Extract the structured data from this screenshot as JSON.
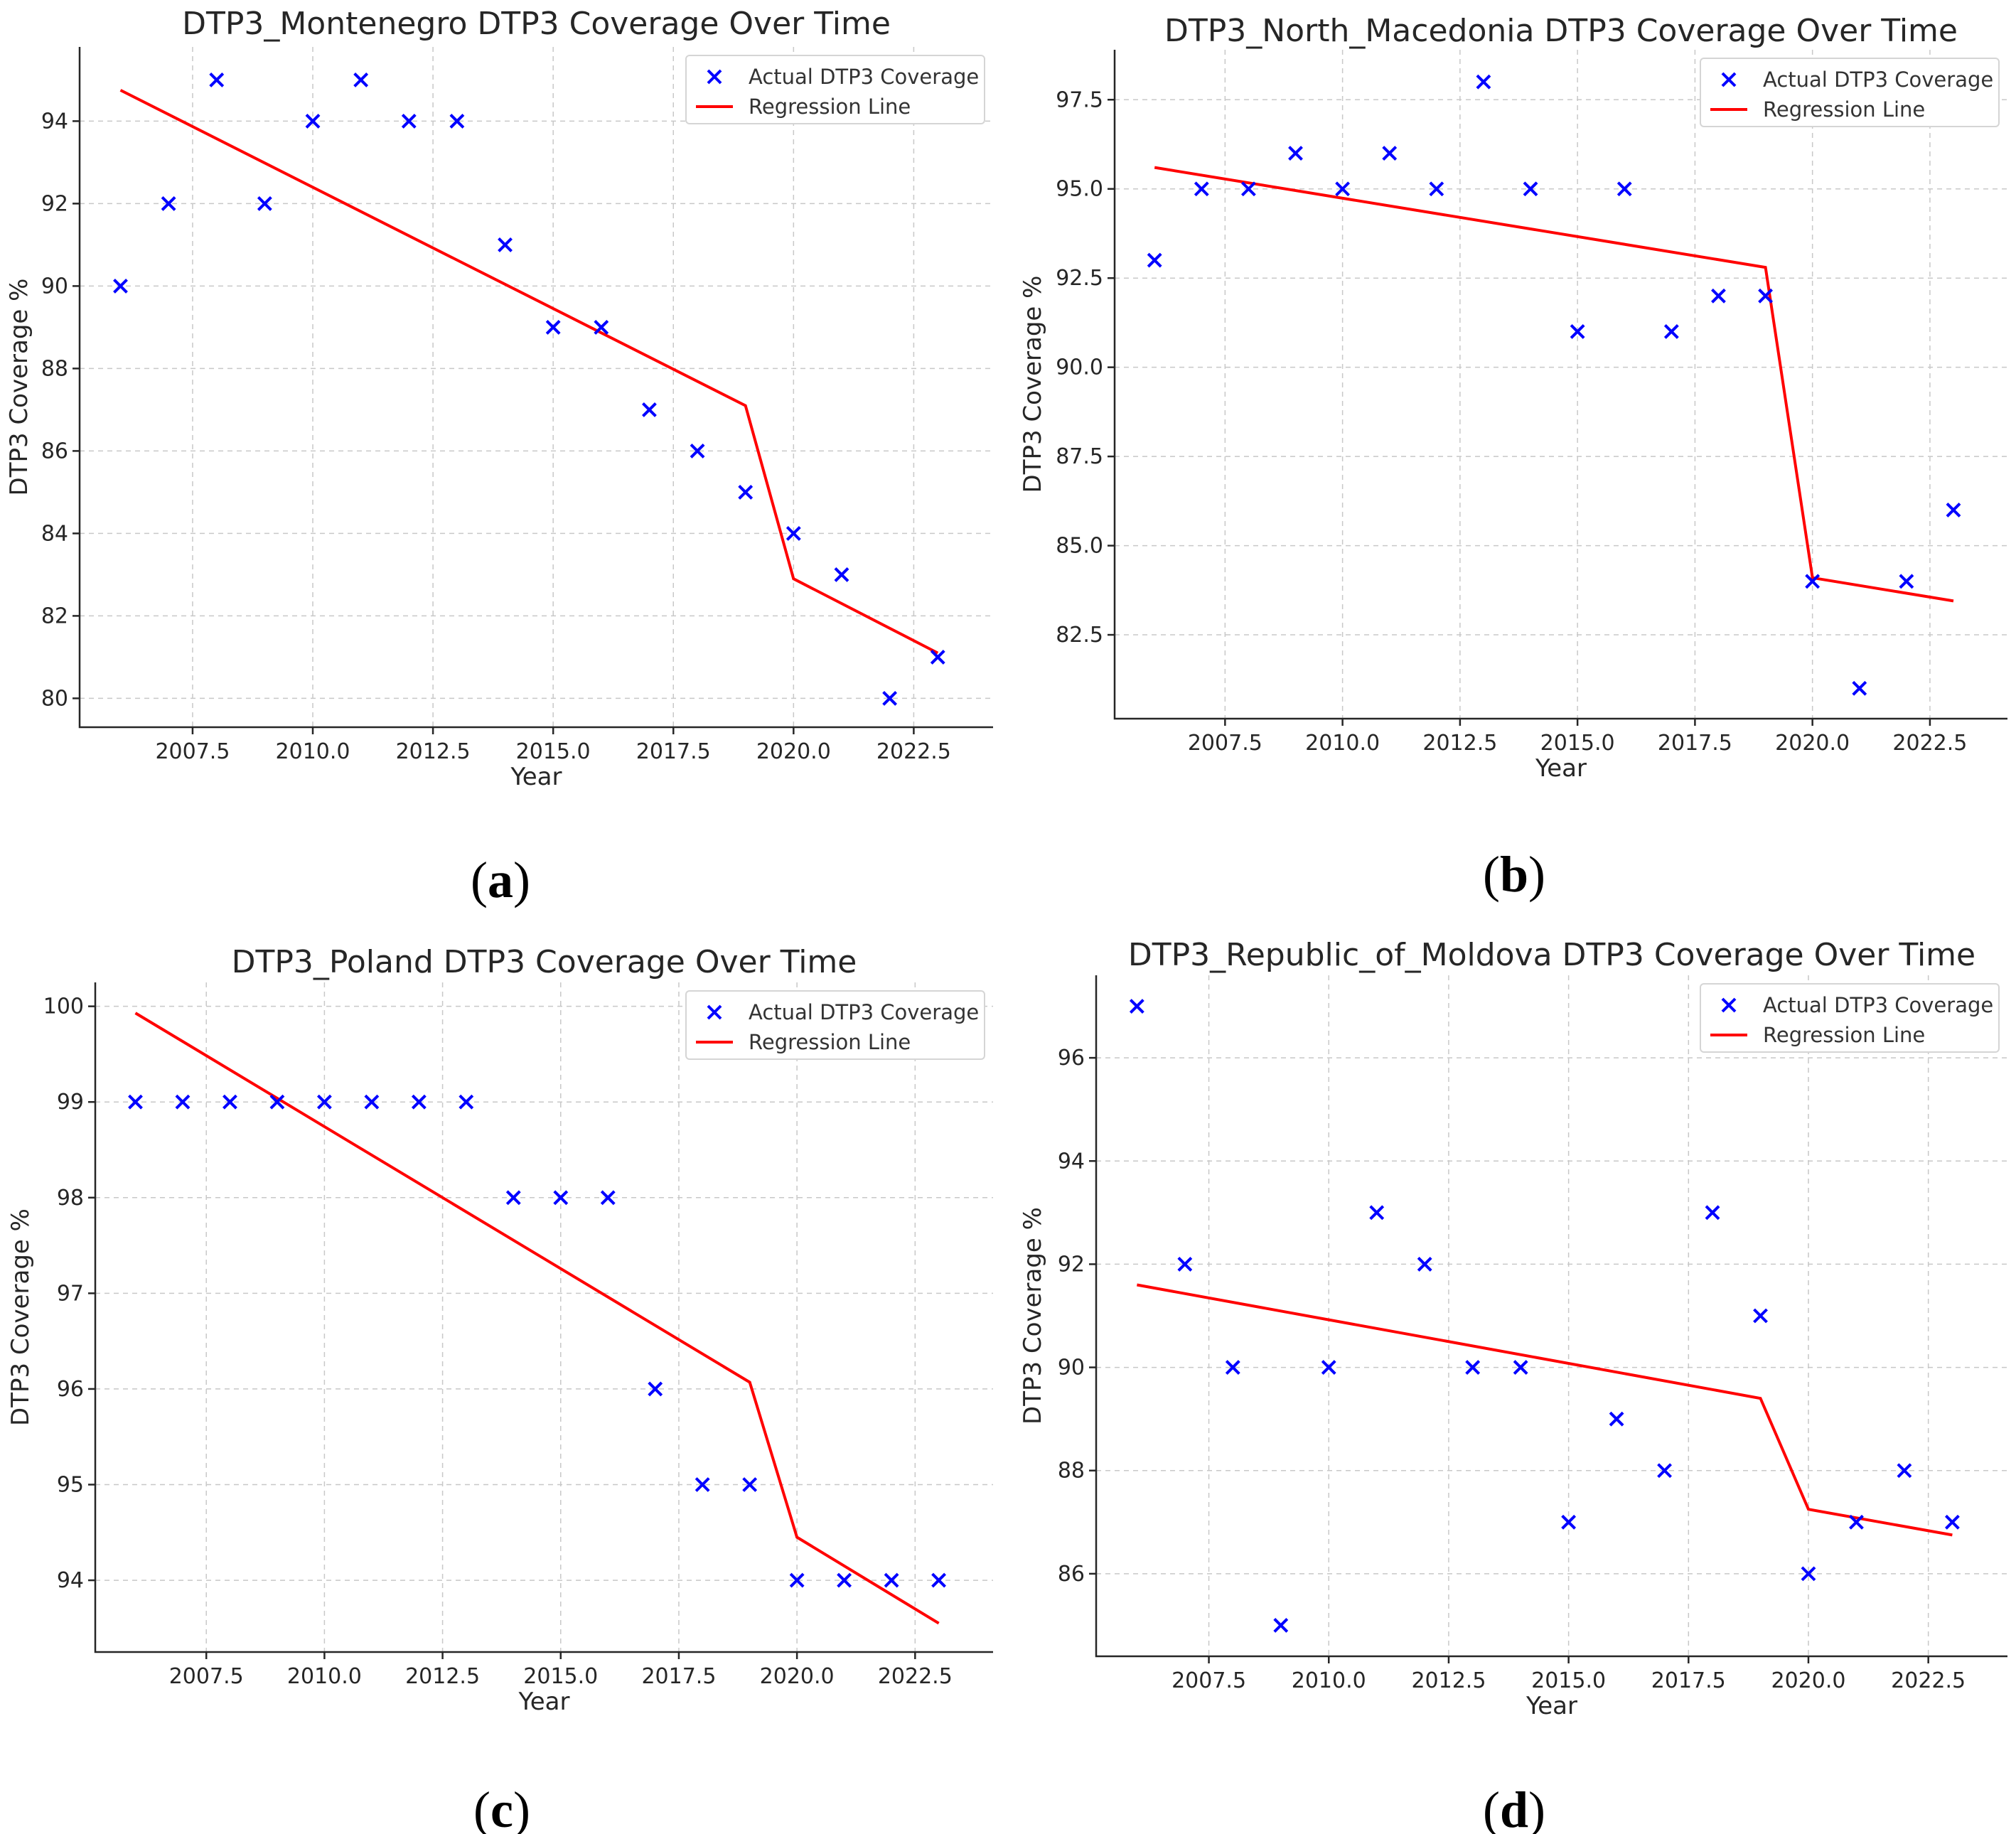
{
  "colors": {
    "points": "#0000ff",
    "regression": "#ff0000"
  },
  "chart_data": [
    {
      "type": "scatter",
      "panel": "a",
      "title": "DTP3_Montenegro DTP3 Coverage Over Time",
      "xlabel": "Year",
      "ylabel": "DTP3 Coverage %",
      "xlim": [
        2005.15,
        2024.15
      ],
      "ylim": [
        79.3,
        95.8
      ],
      "xticks": [
        2007.5,
        2010.0,
        2012.5,
        2015.0,
        2017.5,
        2020.0,
        2022.5
      ],
      "xtick_labels": [
        "2007.5",
        "2010.0",
        "2012.5",
        "2015.0",
        "2017.5",
        "2020.0",
        "2022.5"
      ],
      "yticks": [
        80,
        82,
        84,
        86,
        88,
        90,
        92,
        94
      ],
      "ytick_labels": [
        "80",
        "82",
        "84",
        "86",
        "88",
        "90",
        "92",
        "94"
      ],
      "grid": true,
      "legend": [
        "Actual DTP3 Coverage",
        "Regression Line"
      ],
      "legend_position": "top-right",
      "series": [
        {
          "name": "Actual DTP3 Coverage",
          "kind": "scatter",
          "x": [
            2006,
            2007,
            2008,
            2009,
            2010,
            2011,
            2012,
            2013,
            2014,
            2015,
            2016,
            2017,
            2018,
            2019,
            2020,
            2021,
            2022,
            2023
          ],
          "y": [
            90,
            92,
            95,
            92,
            94,
            95,
            94,
            94,
            91,
            89,
            89,
            87,
            86,
            85,
            84,
            83,
            80,
            81
          ]
        },
        {
          "name": "Regression Line",
          "kind": "line",
          "x": [
            2006,
            2019,
            2020,
            2023
          ],
          "y": [
            94.75,
            87.1,
            82.9,
            81.1
          ]
        }
      ]
    },
    {
      "type": "scatter",
      "panel": "b",
      "title": "DTP3_North_Macedonia DTP3 Coverage Over Time",
      "xlabel": "Year",
      "ylabel": "DTP3 Coverage %",
      "xlim": [
        2005.15,
        2024.15
      ],
      "ylim": [
        80.15,
        98.9
      ],
      "xticks": [
        2007.5,
        2010.0,
        2012.5,
        2015.0,
        2017.5,
        2020.0,
        2022.5
      ],
      "xtick_labels": [
        "2007.5",
        "2010.0",
        "2012.5",
        "2015.0",
        "2017.5",
        "2020.0",
        "2022.5"
      ],
      "yticks": [
        82.5,
        85.0,
        87.5,
        90.0,
        92.5,
        95.0,
        97.5
      ],
      "ytick_labels": [
        "82.5",
        "85.0",
        "87.5",
        "90.0",
        "92.5",
        "95.0",
        "97.5"
      ],
      "grid": true,
      "legend": [
        "Actual DTP3 Coverage",
        "Regression Line"
      ],
      "legend_position": "top-right",
      "series": [
        {
          "name": "Actual DTP3 Coverage",
          "kind": "scatter",
          "x": [
            2006,
            2007,
            2008,
            2009,
            2010,
            2011,
            2012,
            2013,
            2014,
            2015,
            2016,
            2017,
            2018,
            2019,
            2020,
            2021,
            2022,
            2023
          ],
          "y": [
            93,
            95,
            95,
            96,
            95,
            96,
            95,
            98,
            95,
            91,
            95,
            91,
            92,
            92,
            84,
            81,
            84,
            86
          ]
        },
        {
          "name": "Regression Line",
          "kind": "line",
          "x": [
            2006,
            2019,
            2020,
            2023
          ],
          "y": [
            95.6,
            92.8,
            84.1,
            83.45
          ]
        }
      ]
    },
    {
      "type": "scatter",
      "panel": "c",
      "title": "DTP3_Poland DTP3 Coverage Over Time",
      "xlabel": "Year",
      "ylabel": "DTP3 Coverage %",
      "xlim": [
        2005.15,
        2024.15
      ],
      "ylim": [
        93.25,
        100.25
      ],
      "xticks": [
        2007.5,
        2010.0,
        2012.5,
        2015.0,
        2017.5,
        2020.0,
        2022.5
      ],
      "xtick_labels": [
        "2007.5",
        "2010.0",
        "2012.5",
        "2015.0",
        "2017.5",
        "2020.0",
        "2022.5"
      ],
      "yticks": [
        94,
        95,
        96,
        97,
        98,
        99,
        100
      ],
      "ytick_labels": [
        "94",
        "95",
        "96",
        "97",
        "98",
        "99",
        "100"
      ],
      "grid": true,
      "legend": [
        "Actual DTP3 Coverage",
        "Regression Line"
      ],
      "legend_position": "top-right",
      "series": [
        {
          "name": "Actual DTP3 Coverage",
          "kind": "scatter",
          "x": [
            2006,
            2007,
            2008,
            2009,
            2010,
            2011,
            2012,
            2013,
            2014,
            2015,
            2016,
            2017,
            2018,
            2019,
            2020,
            2021,
            2022,
            2023
          ],
          "y": [
            99,
            99,
            99,
            99,
            99,
            99,
            99,
            99,
            98,
            98,
            98,
            96,
            95,
            95,
            94,
            94,
            94,
            94
          ]
        },
        {
          "name": "Regression Line",
          "kind": "line",
          "x": [
            2006,
            2019,
            2020,
            2023
          ],
          "y": [
            99.93,
            96.07,
            94.45,
            93.55
          ]
        }
      ]
    },
    {
      "type": "scatter",
      "panel": "d",
      "title": "DTP3_Republic_of_Moldova DTP3 Coverage Over Time",
      "xlabel": "Year",
      "ylabel": "DTP3 Coverage %",
      "xlim": [
        2005.15,
        2024.15
      ],
      "ylim": [
        84.4,
        97.6
      ],
      "xticks": [
        2007.5,
        2010.0,
        2012.5,
        2015.0,
        2017.5,
        2020.0,
        2022.5
      ],
      "xtick_labels": [
        "2007.5",
        "2010.0",
        "2012.5",
        "2015.0",
        "2017.5",
        "2020.0",
        "2022.5"
      ],
      "yticks": [
        86,
        88,
        90,
        92,
        94,
        96
      ],
      "ytick_labels": [
        "86",
        "88",
        "90",
        "92",
        "94",
        "96"
      ],
      "grid": true,
      "legend": [
        "Actual DTP3 Coverage",
        "Regression Line"
      ],
      "legend_position": "top-right",
      "series": [
        {
          "name": "Actual DTP3 Coverage",
          "kind": "scatter",
          "x": [
            2006,
            2007,
            2008,
            2009,
            2010,
            2011,
            2012,
            2013,
            2014,
            2015,
            2016,
            2017,
            2018,
            2019,
            2020,
            2021,
            2022,
            2023
          ],
          "y": [
            97,
            92,
            90,
            85,
            90,
            93,
            92,
            90,
            90,
            87,
            89,
            88,
            93,
            91,
            86,
            87,
            88,
            87
          ]
        },
        {
          "name": "Regression Line",
          "kind": "line",
          "x": [
            2006,
            2019,
            2020,
            2023
          ],
          "y": [
            91.6,
            89.4,
            87.25,
            86.75
          ]
        }
      ]
    }
  ],
  "panel_labels": [
    {
      "open": "(",
      "letter": "a",
      "close": ")"
    },
    {
      "open": "(",
      "letter": "b",
      "close": ")"
    },
    {
      "open": "(",
      "letter": "c",
      "close": ")"
    },
    {
      "open": "(",
      "letter": "d",
      "close": ")"
    }
  ]
}
